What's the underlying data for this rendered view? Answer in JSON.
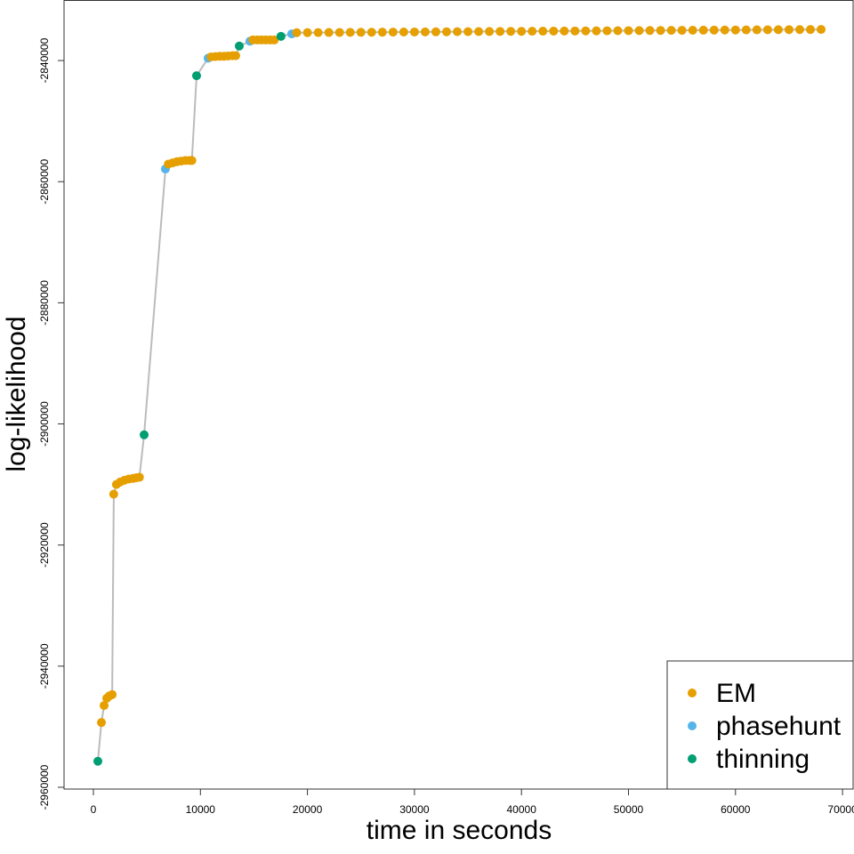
{
  "chart_data": {
    "type": "scatter",
    "xlabel": "time in seconds",
    "ylabel": "log-likelihood",
    "series": [
      {
        "name": "EM",
        "color": "#E69F00"
      },
      {
        "name": "phasehunt",
        "color": "#56B4E9"
      },
      {
        "name": "thinning",
        "color": "#009E73"
      }
    ],
    "line_color": "#bbbbbb",
    "legend": "bottom-right",
    "x": [
      416,
      750,
      1000,
      1250,
      1500,
      1750,
      1900,
      2150,
      2500,
      2900,
      3300,
      3700,
      4000,
      4300,
      4740,
      6730,
      7000,
      7400,
      7800,
      8200,
      8600,
      9000,
      9200,
      9640,
      10720,
      11000,
      11400,
      11800,
      12200,
      12600,
      13000,
      13300,
      13630,
      14630,
      14900,
      15300,
      15700,
      16100,
      16500,
      16900,
      17530,
      18530,
      19000,
      20000,
      21000,
      22000,
      23000,
      24000,
      25000,
      26000,
      27000,
      28000,
      29000,
      30000,
      31000,
      32000,
      33000,
      34000,
      35000,
      36000,
      37000,
      38000,
      39000,
      40000,
      41000,
      42000,
      43000,
      44000,
      45000,
      46000,
      47000,
      48000,
      49000,
      50000,
      51000,
      52000,
      53000,
      54000,
      55000,
      56000,
      57000,
      58000,
      59000,
      60000,
      61000,
      62000,
      63000,
      64000,
      65000,
      66000,
      67000,
      68000
    ],
    "values": [
      -2955700,
      -2949300,
      -2946500,
      -2945300,
      -2944900,
      -2944700,
      -2911600,
      -2910000,
      -2909600,
      -2909300,
      -2909100,
      -2909000,
      -2908900,
      -2908800,
      -2901800,
      -2857900,
      -2857100,
      -2856900,
      -2856700,
      -2856600,
      -2856500,
      -2856500,
      -2856500,
      -2842500,
      -2839600,
      -2839400,
      -2839350,
      -2839300,
      -2839300,
      -2839250,
      -2839200,
      -2839200,
      -2837600,
      -2836800,
      -2836600,
      -2836600,
      -2836600,
      -2836600,
      -2836600,
      -2836600,
      -2836000,
      -2835600,
      -2835400,
      -2835389,
      -2835378,
      -2835367,
      -2835356,
      -2835345,
      -2835334,
      -2835323,
      -2835312,
      -2835301,
      -2835290,
      -2835279,
      -2835268,
      -2835257,
      -2835246,
      -2835235,
      -2835224,
      -2835213,
      -2835202,
      -2835191,
      -2835180,
      -2835169,
      -2835158,
      -2835147,
      -2835136,
      -2835125,
      -2835114,
      -2835103,
      -2835092,
      -2835081,
      -2835070,
      -2835059,
      -2835048,
      -2835037,
      -2835026,
      -2835015,
      -2835004,
      -2834993,
      -2834982,
      -2834971,
      -2834960,
      -2834949,
      -2834938,
      -2834927,
      -2834916,
      -2834905,
      -2834894,
      -2834883,
      -2834872,
      -2834861
    ],
    "groups": [
      2,
      0,
      0,
      0,
      0,
      0,
      0,
      0,
      0,
      0,
      0,
      0,
      0,
      0,
      2,
      1,
      0,
      0,
      0,
      0,
      0,
      0,
      0,
      2,
      1,
      0,
      0,
      0,
      0,
      0,
      0,
      0,
      2,
      1,
      0,
      0,
      0,
      0,
      0,
      0,
      2,
      1,
      0,
      0,
      0,
      0,
      0,
      0,
      0,
      0,
      0,
      0,
      0,
      0,
      0,
      0,
      0,
      0,
      0,
      0,
      0,
      0,
      0,
      0,
      0,
      0,
      0,
      0,
      0,
      0,
      0,
      0,
      0,
      0,
      0,
      0,
      0,
      0,
      0,
      0,
      0,
      0,
      0,
      0,
      0,
      0,
      0,
      0,
      0,
      0,
      0,
      0
    ],
    "xlim": [
      -2743,
      70990
    ],
    "ylim": [
      -2960294,
      -2830000
    ],
    "xticks": [
      0,
      10000,
      20000,
      30000,
      40000,
      50000,
      60000,
      70000
    ],
    "yticks": [
      -2960000,
      -2940000,
      -2920000,
      -2900000,
      -2880000,
      -2860000,
      -2840000
    ]
  }
}
